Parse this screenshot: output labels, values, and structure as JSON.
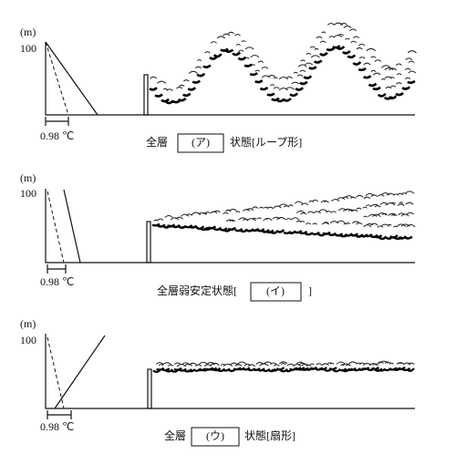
{
  "panels": [
    {
      "y_unit": "(m)",
      "y_top": "100",
      "x_label": "0.98 ℃",
      "caption": {
        "before": "全層",
        "blank": "(ア)",
        "after": "状態[ループ形]"
      }
    },
    {
      "y_unit": "(m)",
      "y_top": "100",
      "x_label": "0.98 ℃",
      "caption": {
        "before": "全層弱安定状態[",
        "blank": "(イ)",
        "after": "]"
      }
    },
    {
      "y_unit": "(m)",
      "y_top": "100",
      "x_label": "0.98 ℃",
      "caption": {
        "before": "全層",
        "blank": "(ウ)",
        "after": "状態[扇形]"
      }
    }
  ]
}
